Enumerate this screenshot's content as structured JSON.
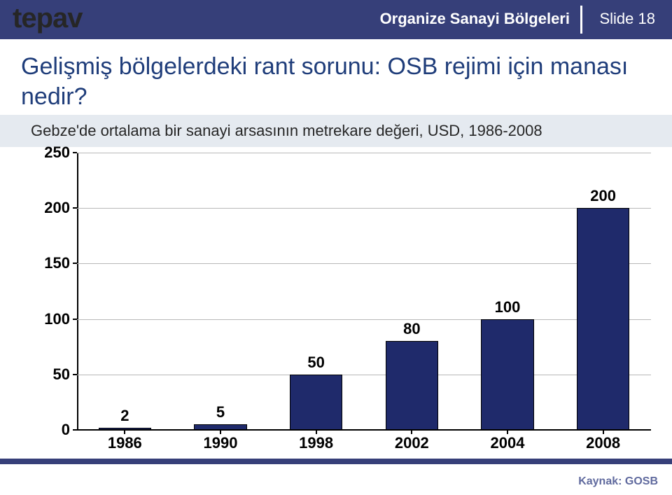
{
  "header": {
    "logo": "tepav",
    "title": "Organize Sanayi Bölgeleri",
    "slide_label": "Slide 18"
  },
  "main_title": "Gelişmiş bölgelerdeki rant sorunu: OSB rejimi için manası nedir?",
  "subtitle": "Gebze'de ortalama bir sanayi arsasının metrekare değeri, USD, 1986-2008",
  "chart": {
    "type": "bar",
    "categories": [
      "1986",
      "1990",
      "1998",
      "2002",
      "2004",
      "2008"
    ],
    "values": [
      2,
      5,
      50,
      80,
      100,
      200
    ],
    "value_labels": [
      "2",
      "5",
      "50",
      "80",
      "100",
      "200"
    ],
    "ylim": [
      0,
      250
    ],
    "ytick_step": 50,
    "y_ticks": [
      "0",
      "50",
      "100",
      "150",
      "200",
      "250"
    ],
    "bar_color": "#1f2a6b",
    "grid_color": "#b8b8b8",
    "axis_color": "#000000",
    "bar_width_ratio": 0.55,
    "label_fontsize": 22,
    "label_fontweight": "700",
    "background_color": "#ffffff"
  },
  "footer": {
    "source": "Kaynak: GOSB"
  },
  "colors": {
    "header_bg": "#363f79",
    "title_color": "#1f3d7a",
    "subtitle_band": "#e5eaf0",
    "footer_text": "#606a9e"
  }
}
